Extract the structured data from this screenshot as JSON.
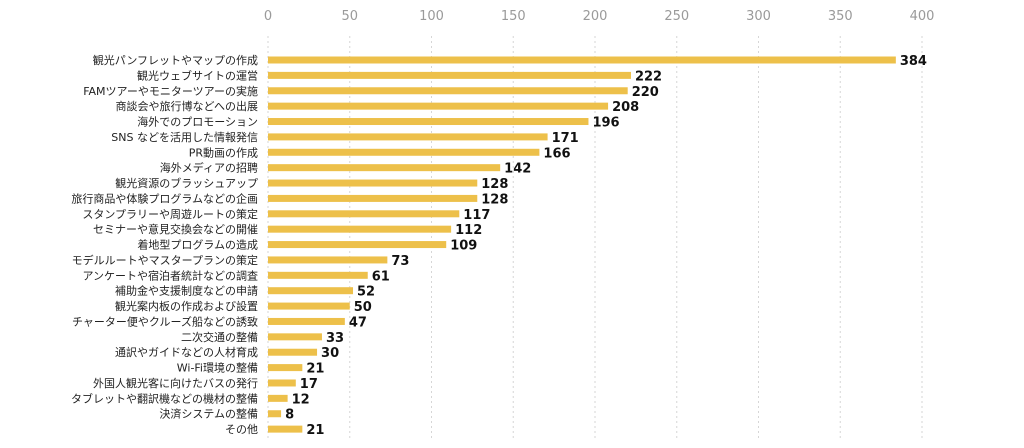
{
  "chart_data": {
    "type": "bar",
    "orientation": "horizontal",
    "title": "",
    "xlabel": "",
    "ylabel": "",
    "xlim": [
      0,
      400
    ],
    "xticks": [
      0,
      50,
      100,
      150,
      200,
      250,
      300,
      350,
      400
    ],
    "xtick_labels": [
      "0",
      "50",
      "100",
      "150",
      "200",
      "250",
      "300",
      "350",
      "400"
    ],
    "grid": "vertical dashed",
    "bar_color": "#EDC04A",
    "categories": [
      "観光パンフレットやマップの作成",
      "観光ウェブサイトの運営",
      "FAMツアーやモニターツアーの実施",
      "商談会や旅行博などへの出展",
      "海外でのプロモーション",
      "SNS などを活用した情報発信",
      "PR動画の作成",
      "海外メディアの招聘",
      "観光資源のブラッシュアップ",
      "旅行商品や体験プログラムなどの企画",
      "スタンプラリーや周遊ルートの策定",
      "セミナーや意見交換会などの開催",
      "着地型プログラムの造成",
      "モデルルートやマスタープランの策定",
      "アンケートや宿泊者統計などの調査",
      "補助金や支援制度などの申請",
      "観光案内板の作成および設置",
      "チャーター便やクルーズ船などの誘致",
      "二次交通の整備",
      "通訳やガイドなどの人材育成",
      "Wi-Fi環境の整備",
      "外国人観光客に向けたバスの発行",
      "タブレットや翻訳機などの機材の整備",
      "決済システムの整備",
      "その他"
    ],
    "values": [
      384,
      222,
      220,
      208,
      196,
      171,
      166,
      142,
      128,
      128,
      117,
      112,
      109,
      73,
      61,
      52,
      50,
      47,
      33,
      30,
      21,
      17,
      12,
      8,
      21
    ],
    "value_labels": [
      "384",
      "222",
      "220",
      "208",
      "196",
      "171",
      "166",
      "142",
      "128",
      "128",
      "117",
      "112",
      "109",
      "73",
      "61",
      "52",
      "50",
      "47",
      "33",
      "30",
      "21",
      "17",
      "12",
      "8",
      "21"
    ]
  }
}
